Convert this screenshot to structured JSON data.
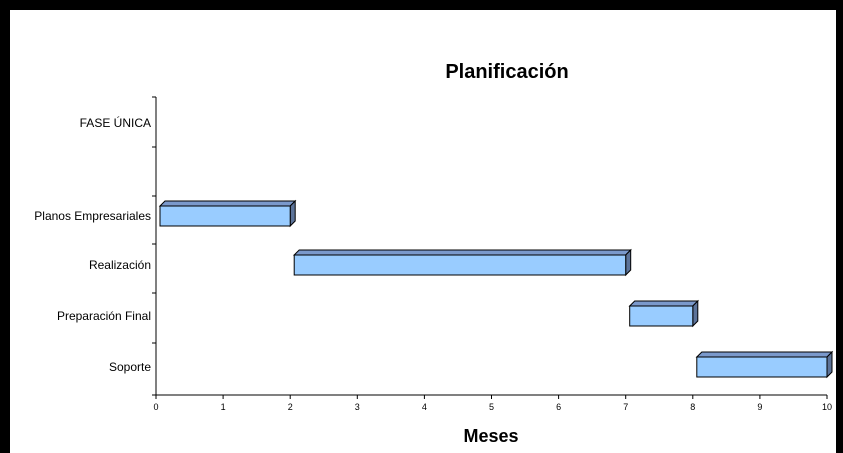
{
  "chart_data": {
    "type": "bar",
    "orientation": "horizontal",
    "title": "Planificación",
    "xlabel": "Meses",
    "ylabel": "",
    "categories": [
      "FASE ÚNICA",
      "Planos Empresariales",
      "Realización",
      "Preparación Final",
      "Soporte"
    ],
    "series": [
      {
        "start": [
          null,
          0,
          2,
          7,
          8
        ],
        "end": [
          null,
          2,
          7,
          8,
          10
        ]
      }
    ],
    "xlim": [
      0,
      10
    ],
    "xticks": [
      "0",
      "1",
      "2",
      "3",
      "4",
      "5",
      "6",
      "7",
      "8",
      "9",
      "10"
    ],
    "grid": false,
    "colors": {
      "bar_face": "#99CCFF",
      "bar_top": "#7A99CC",
      "bar_side": "#5C7399",
      "outline": "#000000"
    }
  }
}
